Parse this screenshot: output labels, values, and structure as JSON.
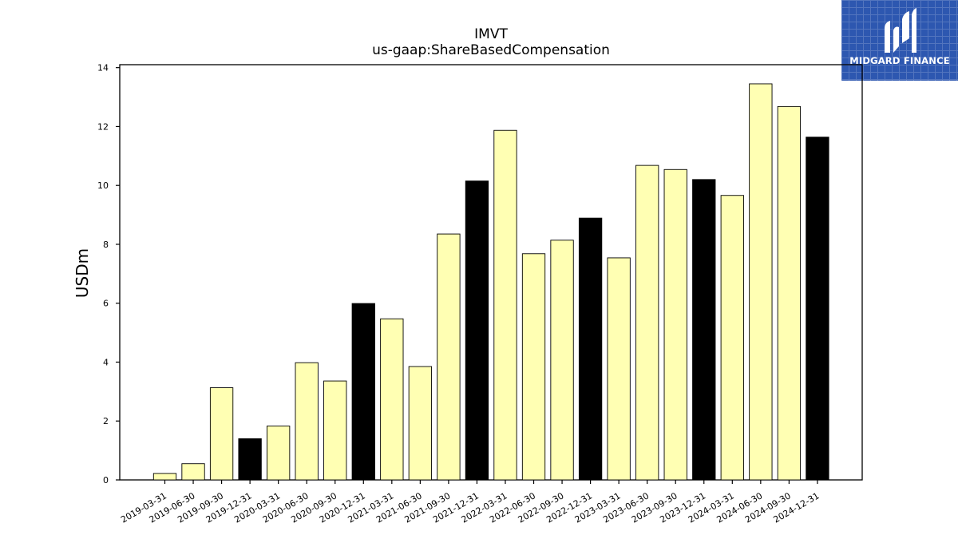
{
  "brand": {
    "name": "MIDGARD FINANCE",
    "background": "#2d57b0"
  },
  "chart_data": {
    "type": "bar",
    "title": "IMVT",
    "subtitle": "us-gaap:ShareBasedCompensation",
    "xlabel": "",
    "ylabel": "USDm",
    "ylim": [
      0,
      14.1
    ],
    "yticks": [
      0,
      2,
      4,
      6,
      8,
      10,
      12,
      14
    ],
    "grid": false,
    "colors": {
      "quarter": "#ffffb3",
      "year_end": "#000000",
      "edge": "#000000"
    },
    "categories": [
      "2019-03-31",
      "2019-06-30",
      "2019-09-30",
      "2019-12-31",
      "2020-03-31",
      "2020-06-30",
      "2020-09-30",
      "2020-12-31",
      "2021-03-31",
      "2021-06-30",
      "2021-09-30",
      "2021-12-31",
      "2022-03-31",
      "2022-06-30",
      "2022-09-30",
      "2022-12-31",
      "2023-03-31",
      "2023-06-30",
      "2023-09-30",
      "2023-12-31",
      "2024-03-31",
      "2024-06-30",
      "2024-09-30",
      "2024-12-31"
    ],
    "values": [
      0.22,
      0.55,
      3.13,
      1.4,
      1.83,
      3.98,
      3.36,
      5.99,
      5.47,
      3.85,
      8.35,
      10.15,
      11.87,
      7.68,
      8.14,
      8.89,
      7.54,
      10.68,
      10.54,
      10.2,
      9.66,
      13.45,
      12.68,
      11.64
    ],
    "year_end": [
      false,
      false,
      false,
      true,
      false,
      false,
      false,
      true,
      false,
      false,
      false,
      true,
      false,
      false,
      false,
      true,
      false,
      false,
      false,
      true,
      false,
      false,
      false,
      true
    ]
  }
}
